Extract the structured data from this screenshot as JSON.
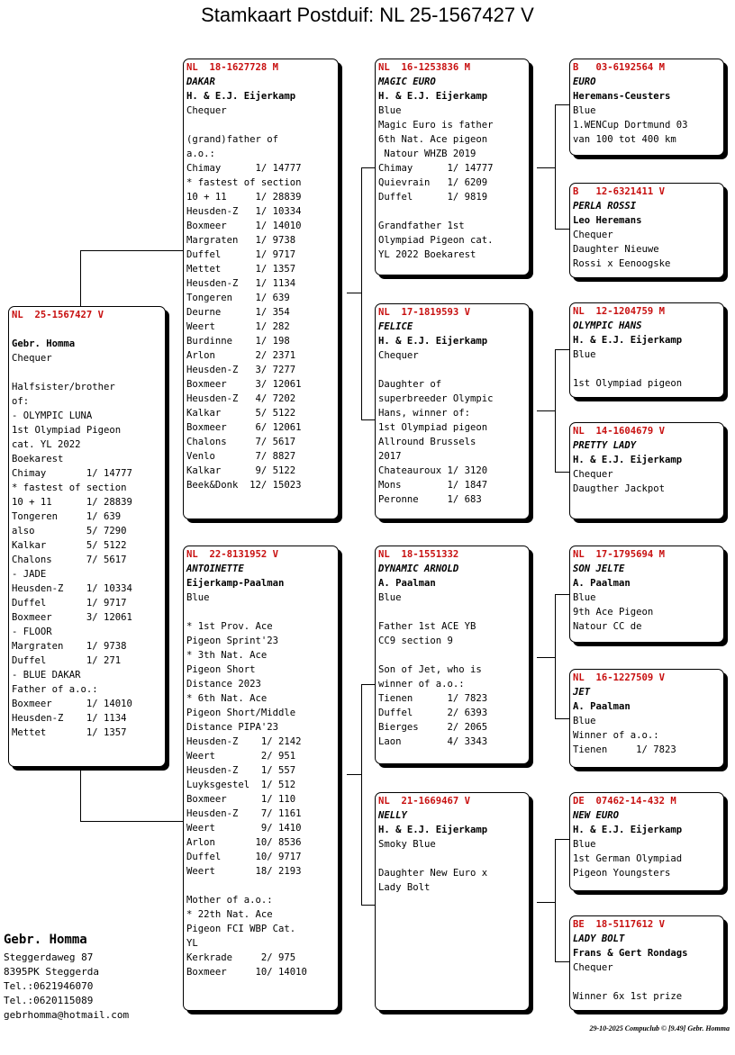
{
  "page_title": "Stamkaart Postduif: NL  25-1567427 V",
  "pigeons": {
    "subject": {
      "ring": "NL  25-1567427 V",
      "name": "",
      "owner": "Gebr. Homma",
      "color": "Chequer",
      "info": [
        "",
        "Halfsister/brother",
        "of:",
        "- OLYMPIC LUNA",
        "1st Olympiad Pigeon",
        "cat. YL 2022",
        "Boekarest",
        "Chimay       1/ 14777",
        "* fastest of section",
        "10 + 11      1/ 28839",
        "Tongeren     1/ 639",
        "also         5/ 7290",
        "Kalkar       5/ 5122",
        "Chalons      7/ 5617",
        "- JADE",
        "Heusden-Z    1/ 10334",
        "Duffel       1/ 9717",
        "Boxmeer      3/ 12061",
        "- FLOOR",
        "Margraten    1/ 9738",
        "Duffel       1/ 271",
        "- BLUE DAKAR",
        "Father of a.o.:",
        "Boxmeer      1/ 14010",
        "Heusden-Z    1/ 1134",
        "Mettet       1/ 1357"
      ]
    },
    "father": {
      "ring": "NL  18-1627728 M",
      "name": "DAKAR",
      "owner": "H. & E.J. Eijerkamp",
      "color": "Chequer",
      "info": [
        "",
        "(grand)father of",
        "a.o.:",
        "Chimay      1/ 14777",
        "* fastest of section",
        "10 + 11     1/ 28839",
        "Heusden-Z   1/ 10334",
        "Boxmeer     1/ 14010",
        "Margraten   1/ 9738",
        "Duffel      1/ 9717",
        "Mettet      1/ 1357",
        "Heusden-Z   1/ 1134",
        "Tongeren    1/ 639",
        "Deurne      1/ 354",
        "Weert       1/ 282",
        "Burdinne    1/ 198",
        "Arlon       2/ 2371",
        "Heusden-Z   3/ 7277",
        "Boxmeer     3/ 12061",
        "Heusden-Z   4/ 7202",
        "Kalkar      5/ 5122",
        "Boxmeer     6/ 12061",
        "Chalons     7/ 5617",
        "Venlo       7/ 8827",
        "Kalkar      9/ 5122",
        "Beek&Donk  12/ 15023"
      ]
    },
    "mother": {
      "ring": "NL  22-8131952 V",
      "name": "ANTOINETTE",
      "owner": "Eijerkamp-Paalman",
      "color": "Blue",
      "info": [
        "",
        "* 1st Prov. Ace",
        "Pigeon Sprint'23",
        "* 3th Nat. Ace",
        "Pigeon Short",
        "Distance 2023",
        "* 6th Nat. Ace",
        "Pigeon Short/Middle",
        "Distance PIPA'23",
        "Heusden-Z    1/ 2142",
        "Weert        2/ 951",
        "Heusden-Z    1/ 557",
        "Luyksgestel  1/ 512",
        "Boxmeer      1/ 110",
        "Heusden-Z    7/ 1161",
        "Weert        9/ 1410",
        "Arlon       10/ 8536",
        "Duffel      10/ 9717",
        "Weert       18/ 2193",
        "",
        "Mother of a.o.:",
        "* 22th Nat. Ace",
        "Pigeon FCI WBP Cat.",
        "YL",
        "Kerkrade     2/ 975",
        "Boxmeer     10/ 14010"
      ]
    },
    "ff": {
      "ring": "NL  16-1253836 M",
      "name": "MAGIC EURO",
      "owner": "H. & E.J. Eijerkamp",
      "color": "Blue",
      "info": [
        "Magic Euro is father",
        "6th Nat. Ace pigeon",
        " Natour WHZB 2019",
        "Chimay      1/ 14777",
        "Quievrain   1/ 6209",
        "Duffel      1/ 9819",
        "",
        "Grandfather 1st",
        "Olympiad Pigeon cat.",
        "YL 2022 Boekarest"
      ]
    },
    "fm": {
      "ring": "NL  17-1819593 V",
      "name": "FELICE",
      "owner": "H. & E.J. Eijerkamp",
      "color": "Chequer",
      "info": [
        "",
        "Daughter of",
        "superbreeder Olympic",
        "Hans, winner of:",
        "1st Olympiad pigeon",
        "Allround Brussels",
        "2017",
        "Chateauroux 1/ 3120",
        "Mons        1/ 1847",
        "Peronne     1/ 683"
      ]
    },
    "mf": {
      "ring": "NL  18-1551332",
      "name": "DYNAMIC ARNOLD",
      "owner": "A. Paalman",
      "color": "Blue",
      "info": [
        "",
        "Father 1st ACE YB",
        "CC9 section 9",
        "",
        "Son of Jet, who is",
        "winner of a.o.:",
        "Tienen      1/ 7823",
        "Duffel      2/ 6393",
        "Bierges     2/ 2065",
        "Laon        4/ 3343"
      ]
    },
    "mm": {
      "ring": "NL  21-1669467 V",
      "name": "NELLY",
      "owner": "H. & E.J. Eijerkamp",
      "color": "Smoky Blue",
      "info": [
        "",
        "Daughter New Euro x",
        "Lady Bolt"
      ]
    },
    "fff": {
      "ring": "B   03-6192564 M",
      "name": "EURO",
      "owner": "Heremans-Ceusters",
      "color": "Blue",
      "info": [
        "1.WENCup Dortmund 03",
        "van 100 tot 400 km"
      ]
    },
    "ffm": {
      "ring": "B   12-6321411 V",
      "name": "PERLA ROSSI",
      "owner": "Leo Heremans",
      "color": "Chequer",
      "info": [
        "Daughter Nieuwe",
        "Rossi x Eenoogske"
      ]
    },
    "fmf": {
      "ring": "NL  12-1204759 M",
      "name": "OLYMPIC HANS",
      "owner": "H. & E.J. Eijerkamp",
      "color": "Blue",
      "info": [
        "",
        "1st Olympiad pigeon"
      ]
    },
    "fmm": {
      "ring": "NL  14-1604679 V",
      "name": "PRETTY LADY",
      "owner": "H. & E.J. Eijerkamp",
      "color": "Chequer",
      "info": [
        "Daugther Jackpot"
      ]
    },
    "mff": {
      "ring": "NL  17-1795694 M",
      "name": "SON JELTE",
      "owner": "A. Paalman",
      "color": "Blue",
      "info": [
        "9th Ace Pigeon",
        "Natour CC de"
      ]
    },
    "mfm": {
      "ring": "NL  16-1227509 V",
      "name": "JET",
      "owner": "A. Paalman",
      "color": "Blue",
      "info": [
        "Winner of a.o.:",
        "Tienen     1/ 7823"
      ]
    },
    "mmf": {
      "ring": "DE  07462-14-432 M",
      "name": "NEW EURO",
      "owner": "H. & E.J. Eijerkamp",
      "color": "Blue",
      "info": [
        "1st German Olympiad",
        "Pigeon Youngsters"
      ]
    },
    "mmm": {
      "ring": "BE  18-5117612 V",
      "name": "LADY BOLT",
      "owner": "Frans & Gert Rondags",
      "color": "Chequer",
      "info": [
        "",
        "Winner 6x 1st prize"
      ]
    }
  },
  "breeder": {
    "name": "Gebr. Homma",
    "lines": [
      "Steggerdaweg 87",
      "8395PK  Steggerda",
      "Tel.:0621946070",
      "Tel.:0620115089",
      "gebrhomma@hotmail.com"
    ]
  },
  "footer": "29-10-2025   Compuclub © [9.49]  Gebr. Homma",
  "colors": {
    "ring": "#c81010",
    "border": "#000000"
  }
}
